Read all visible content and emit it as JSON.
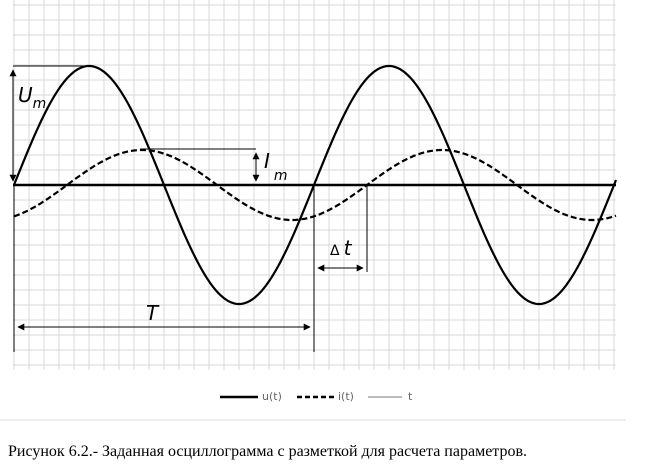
{
  "annotations": {
    "amplitude_u": {
      "main": "U",
      "sub": "m"
    },
    "amplitude_i": {
      "main": "I",
      "sub": "m"
    },
    "phase_shift": {
      "symbol": "Δ",
      "main": "t"
    },
    "period": "T"
  },
  "legend": [
    "u(t)",
    "i(t)",
    "t"
  ],
  "caption": "Рисунок 6.2.-  Заданная осциллограмма с разметкой для расчета параметров."
}
